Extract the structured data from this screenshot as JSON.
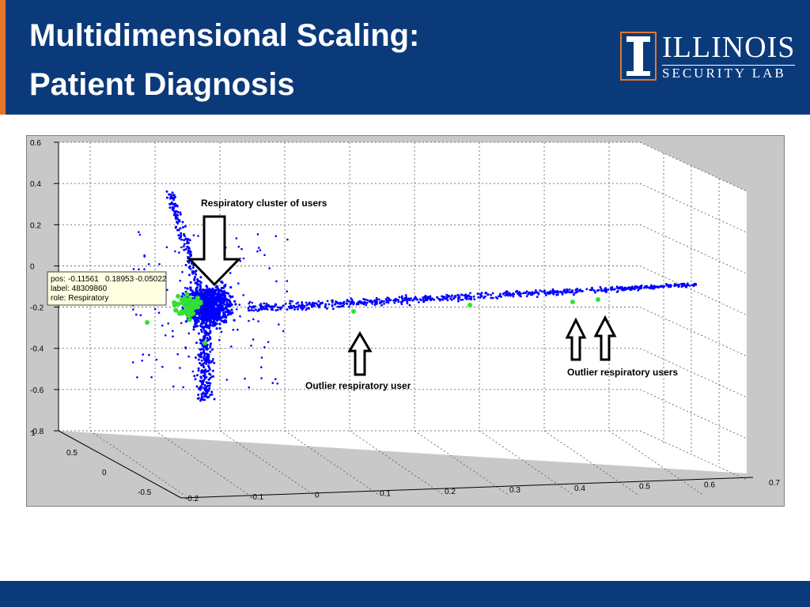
{
  "header": {
    "title_line1": "Multidimensional Scaling:",
    "title_line2": "Patient Diagnosis",
    "logo_main": "ILLINOIS",
    "logo_sub": "SECURITY LAB"
  },
  "colors": {
    "header_bg": "#0b3a7a",
    "accent": "#e8742c",
    "points_all": "#0000ff",
    "points_respiratory": "#33e033"
  },
  "chart_data": {
    "type": "scatter",
    "dimensions": 3,
    "x_ticks": [
      "-0.2",
      "-0.1",
      "0",
      "0.1",
      "0.2",
      "0.3",
      "0.4",
      "0.5",
      "0.6",
      "0.7"
    ],
    "y_ticks": [
      "-0.5",
      "0",
      "0.5",
      "1"
    ],
    "z_ticks": [
      "-0.8",
      "-0.6",
      "-0.4",
      "-0.2",
      "0",
      "0.2",
      "0.4",
      "0.6"
    ],
    "xlim": [
      -0.2,
      0.7
    ],
    "ylim": [
      -0.5,
      1
    ],
    "zlim": [
      -0.8,
      0.6
    ],
    "grid": true,
    "annotations": [
      {
        "text": "Respiratory cluster of users"
      },
      {
        "text": "Outlier respiratory user"
      },
      {
        "text": "Outlier respiratory users"
      }
    ],
    "datatip": {
      "pos_label": "pos:",
      "pos": [
        "-0.11561",
        "0.18953",
        "-0.05022"
      ],
      "label": "label: 48309860",
      "role": "role: Respiratory"
    }
  }
}
